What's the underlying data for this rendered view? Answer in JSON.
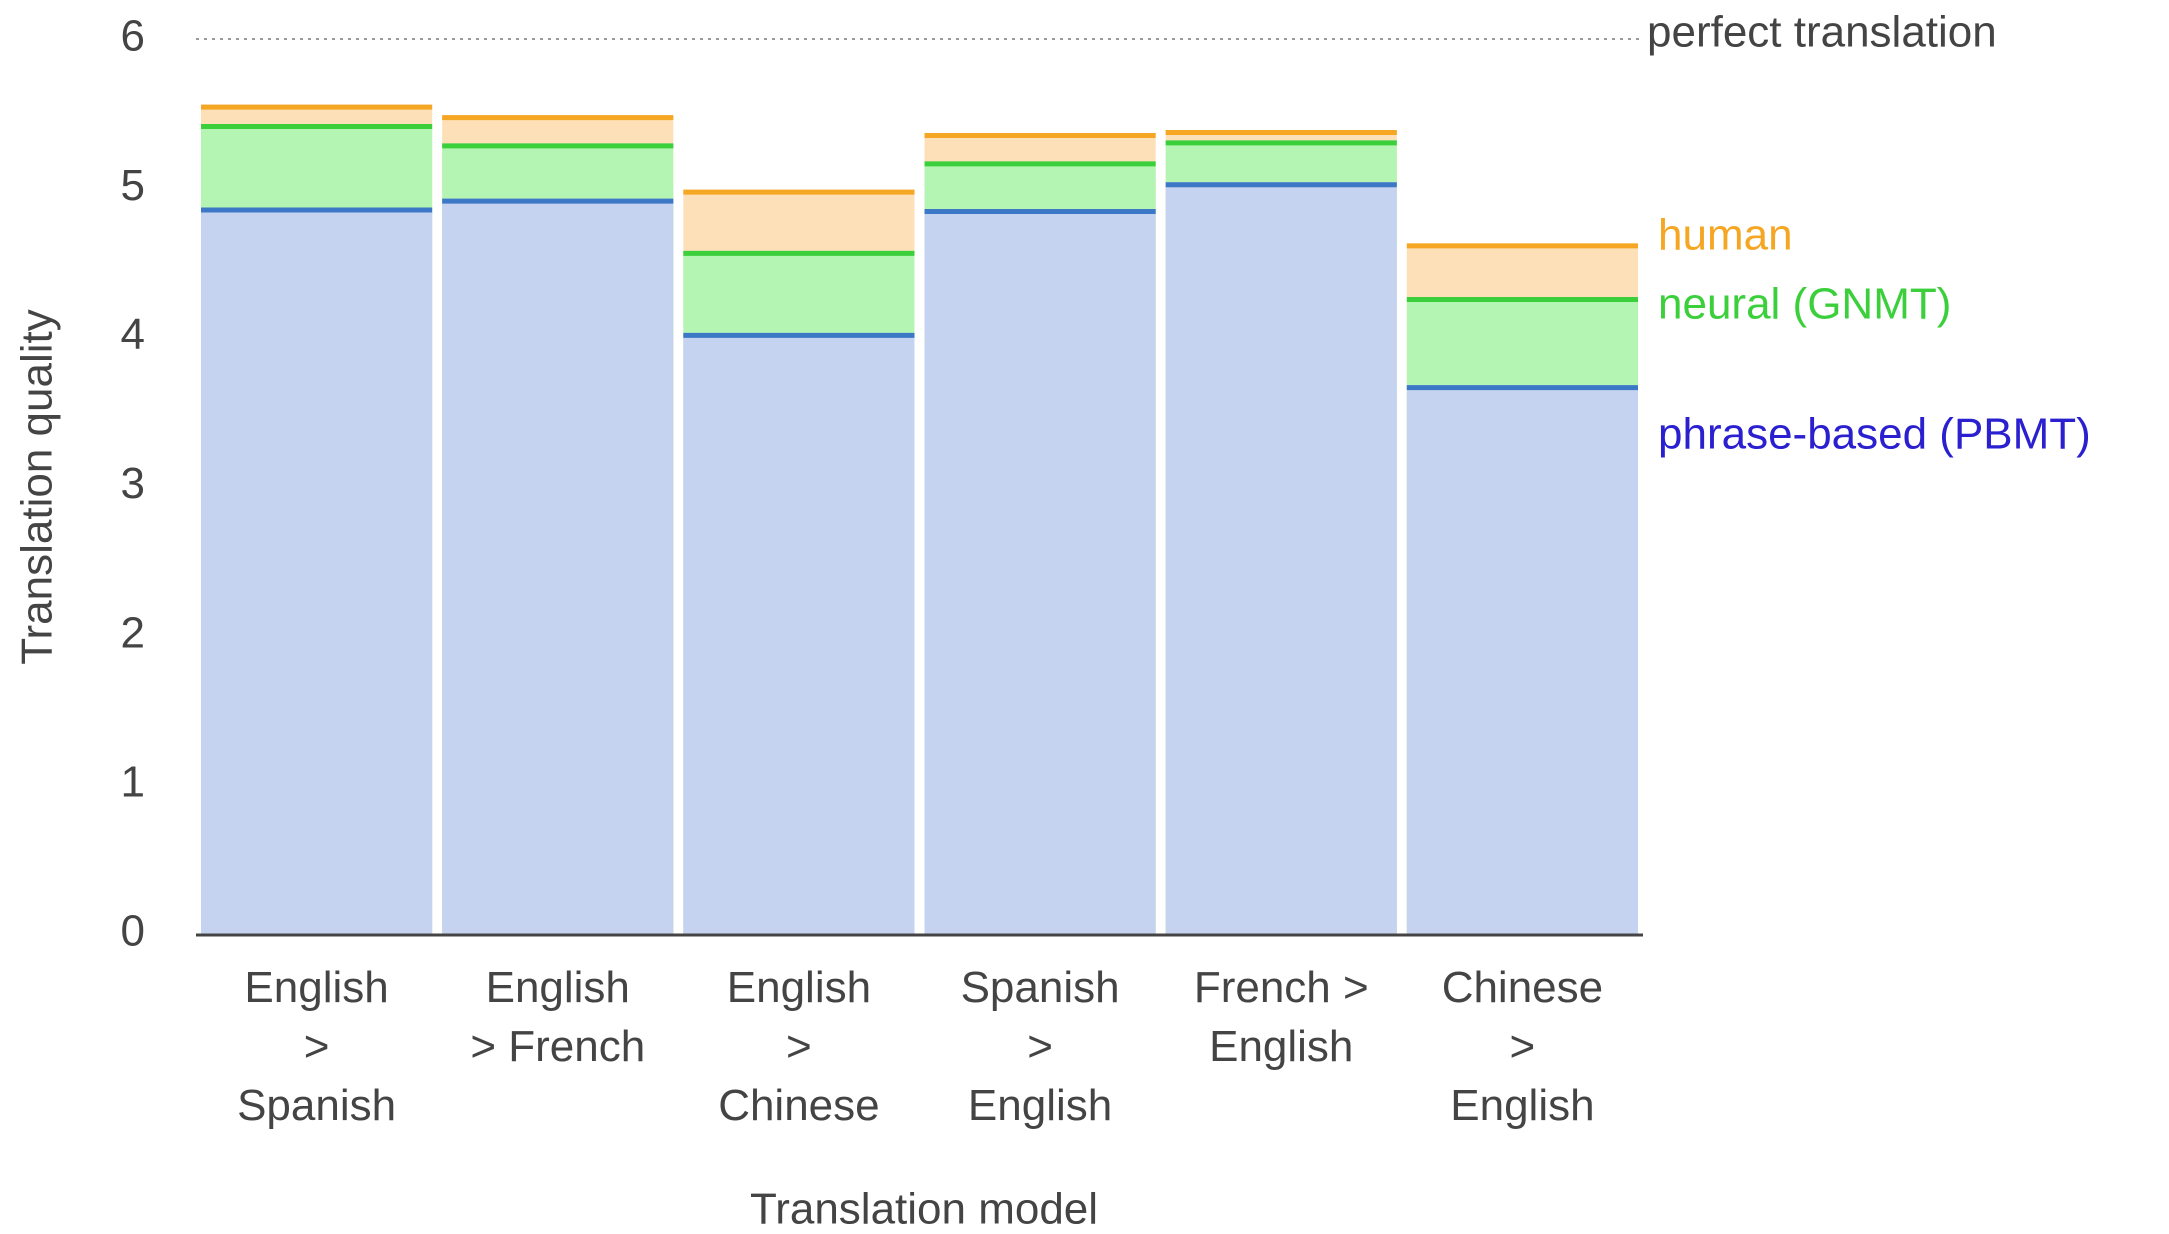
{
  "chart_data": {
    "type": "bar",
    "xlabel": "Translation model",
    "ylabel": "Translation quality",
    "categories": [
      "English > Spanish",
      "English > French",
      "English > Chinese",
      "Spanish > English",
      "French > English",
      "Chinese > English"
    ],
    "series": [
      {
        "name": "human",
        "color": "#f5a623",
        "fill": "#fde0b8",
        "values": [
          5.56,
          5.49,
          4.99,
          5.37,
          5.39,
          4.63
        ]
      },
      {
        "name": "neural (GNMT)",
        "color": "#3ccf3c",
        "fill": "#b4f5b4",
        "values": [
          5.43,
          5.3,
          4.58,
          5.18,
          5.32,
          4.27
        ]
      },
      {
        "name": "phrase-based (PBMT)",
        "color": "#3d78c7",
        "fill": "#c5d3f0",
        "values": [
          4.87,
          4.93,
          4.03,
          4.86,
          5.04,
          3.68
        ]
      }
    ],
    "ylim": [
      0,
      6
    ],
    "yticks": [
      0,
      1,
      2,
      3,
      4,
      5,
      6
    ],
    "annotation": {
      "text": "perfect translation",
      "value": 6
    }
  }
}
